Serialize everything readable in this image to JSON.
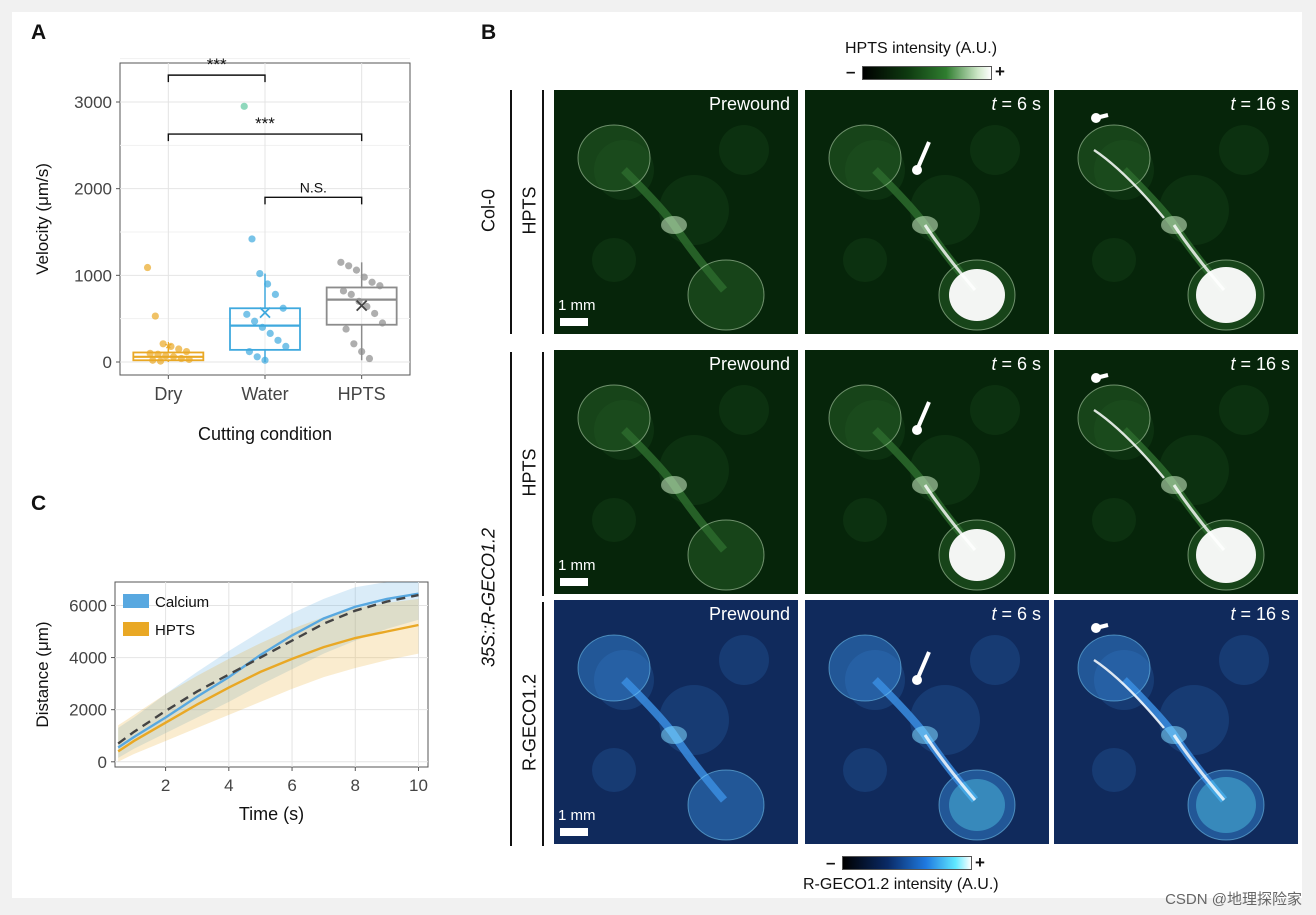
{
  "watermark": "CSDN @地理探险家",
  "panel_labels": {
    "a": "A",
    "b": "B",
    "c": "C"
  },
  "panel_a": {
    "ylabel": "Velocity (μm/s)",
    "xlabel": "Cutting condition",
    "yticks": [
      "0",
      "1000",
      "2000",
      "3000"
    ],
    "brackets": [
      "***",
      "***",
      "N.S."
    ]
  },
  "panel_c": {
    "ylabel": "Distance (μm)",
    "xlabel": "Time (s)",
    "yticks": [
      "0",
      "2000",
      "4000",
      "6000"
    ],
    "xticks": [
      "2",
      "4",
      "6",
      "8",
      "10"
    ]
  },
  "panel_b": {
    "hpts_colorbar_title": "HPTS intensity (A.U.)",
    "rgeco_colorbar_title": "R-GECO1.2 intensity (A.U.)",
    "minus": "–",
    "plus": "+",
    "col_tags": [
      "Prewound",
      "= 6 s",
      "= 16 s"
    ],
    "t_symbol": "t",
    "scale_text": "1 mm",
    "row_labels": {
      "r1_outer": "Col-0",
      "r1_inner": "HPTS",
      "r2_inner": "HPTS",
      "r3_inner": "R-GECO1.2",
      "r23_outer": "35S::R-GECO1.2"
    },
    "colors": {
      "green_dark": "#06250a",
      "green_mid": "#2d6b2d",
      "blue_dark": "#102a5c",
      "blue_mid": "#3a8de0"
    }
  },
  "chart_data": [
    {
      "type": "box",
      "title": "",
      "xlabel": "Cutting condition",
      "ylabel": "Velocity (μm/s)",
      "ylim": [
        -150,
        3450
      ],
      "categories": [
        "Dry",
        "Water",
        "HPTS"
      ],
      "colors": [
        "#e9a825",
        "#3fa9de",
        "#8c8c8c"
      ],
      "boxes": [
        {
          "name": "Dry",
          "q1": 20,
          "median": 60,
          "q3": 110,
          "mean": 150,
          "whisker_low": 0,
          "whisker_high": 200
        },
        {
          "name": "Water",
          "q1": 140,
          "median": 420,
          "q3": 620,
          "mean": 570,
          "whisker_low": 0,
          "whisker_high": 1020
        },
        {
          "name": "HPTS",
          "q1": 430,
          "median": 720,
          "q3": 860,
          "mean": 650,
          "whisker_low": 20,
          "whisker_high": 1150
        }
      ],
      "points": {
        "Dry": [
          1090,
          530,
          210,
          180,
          150,
          120,
          100,
          90,
          70,
          60,
          40,
          30,
          20,
          10
        ],
        "Water": [
          2950,
          1420,
          1020,
          900,
          780,
          620,
          550,
          470,
          400,
          330,
          250,
          180,
          120,
          60,
          20
        ],
        "HPTS": [
          1150,
          1110,
          1060,
          980,
          920,
          880,
          820,
          780,
          700,
          640,
          560,
          450,
          380,
          210,
          120,
          40
        ]
      },
      "outlier_color": "#5fc7a0",
      "comparisons": [
        {
          "pair": [
            "Dry",
            "Water"
          ],
          "label": "***",
          "y": 3310
        },
        {
          "pair": [
            "Dry",
            "HPTS"
          ],
          "label": "***",
          "y": 2630
        },
        {
          "pair": [
            "Water",
            "HPTS"
          ],
          "label": "N.S.",
          "y": 1900
        }
      ],
      "grid": true
    },
    {
      "type": "line",
      "title": "",
      "xlabel": "Time (s)",
      "ylabel": "Distance (μm)",
      "xlim": [
        0.4,
        10.3
      ],
      "ylim": [
        -200,
        6900
      ],
      "x": [
        0.5,
        1,
        2,
        3,
        4,
        5,
        6,
        7,
        8,
        9,
        10
      ],
      "series": [
        {
          "name": "Calcium",
          "color": "#58a8e0",
          "values": [
            550,
            950,
            1700,
            2500,
            3250,
            4100,
            4850,
            5500,
            5950,
            6250,
            6450
          ],
          "band_low": [
            150,
            500,
            1100,
            1700,
            2300,
            2950,
            3550,
            4150,
            4650,
            5100,
            5450
          ],
          "band_high": [
            1300,
            1700,
            2600,
            3450,
            4250,
            5000,
            5700,
            6250,
            6700,
            6900,
            6900
          ]
        },
        {
          "name": "HPTS",
          "color": "#e9a825",
          "values": [
            400,
            800,
            1500,
            2200,
            2850,
            3450,
            3950,
            4400,
            4750,
            5000,
            5250
          ],
          "band_low": [
            0,
            300,
            800,
            1300,
            1800,
            2300,
            2800,
            3250,
            3600,
            3900,
            4150
          ],
          "band_high": [
            1400,
            1800,
            2600,
            3300,
            3950,
            4550,
            5100,
            5550,
            5900,
            6100,
            6250
          ]
        },
        {
          "name": "",
          "color": "#444444",
          "dashed": true,
          "values": [
            700,
            1150,
            1950,
            2700,
            3350,
            4000,
            4650,
            5300,
            5800,
            6150,
            6400
          ]
        }
      ],
      "legend": "top-left",
      "grid": true
    }
  ]
}
